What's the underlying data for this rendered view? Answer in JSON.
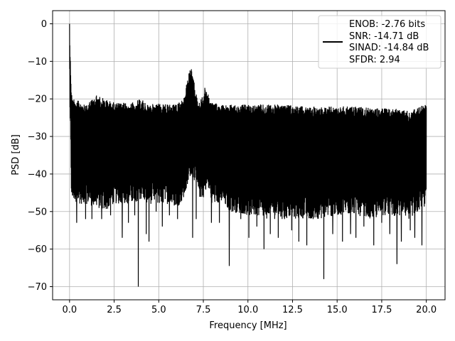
{
  "chart_data": {
    "type": "line",
    "xlabel": "Frequency [MHz]",
    "ylabel": "PSD [dB]",
    "xlim": [
      -0.95,
      21.05
    ],
    "ylim": [
      -73.5,
      3.5
    ],
    "xticks": [
      0.0,
      2.5,
      5.0,
      7.5,
      10.0,
      12.5,
      15.0,
      17.5,
      20.0
    ],
    "xtick_labels": [
      "0.0",
      "2.5",
      "5.0",
      "7.5",
      "10.0",
      "12.5",
      "15.0",
      "17.5",
      "20.0"
    ],
    "yticks": [
      0,
      -10,
      -20,
      -30,
      -40,
      -50,
      -60,
      -70
    ],
    "ytick_labels": [
      "0",
      "−10",
      "−20",
      "−30",
      "−40",
      "−50",
      "−60",
      "−70"
    ],
    "grid": true,
    "legend_position": "top-right",
    "line_color": "#000000",
    "legend": {
      "lines": [
        "ENOB: -2.76 bits",
        "SNR: -14.71 dB",
        "SINAD: -14.84 dB",
        "SFDR: 2.94"
      ]
    },
    "series": [
      {
        "x": [
          0.0,
          0.02,
          0.05,
          0.1,
          0.15,
          0.2,
          0.3,
          0.5,
          1.0,
          1.5,
          2.0,
          2.5,
          3.0,
          3.5,
          4.0,
          4.5,
          5.0,
          5.5,
          6.0,
          6.4,
          6.6,
          6.8,
          7.0,
          7.2,
          7.5,
          7.6,
          7.8,
          8.0,
          8.5,
          9.0,
          10.0,
          11.0,
          12.0,
          13.0,
          14.0,
          15.0,
          16.0,
          17.0,
          18.0,
          19.0,
          19.9,
          20.0
        ],
        "upper": [
          0.0,
          -5.0,
          -10.0,
          -17.0,
          -20.0,
          -19.5,
          -20.0,
          -20.5,
          -21.0,
          -19.0,
          -20.0,
          -21.0,
          -21.0,
          -21.0,
          -20.0,
          -21.5,
          -21.0,
          -21.5,
          -21.5,
          -20.0,
          -15.0,
          -11.0,
          -16.0,
          -21.0,
          -19.0,
          -16.5,
          -19.0,
          -21.0,
          -21.5,
          -21.5,
          -21.5,
          -21.5,
          -21.5,
          -22.0,
          -22.0,
          -22.0,
          -22.0,
          -22.5,
          -22.5,
          -23.0,
          -21.5,
          -21.0
        ],
        "lower": [
          -5.0,
          -28.0,
          -30.0,
          -45.0,
          -49.0,
          -47.0,
          -48.0,
          -48.0,
          -48.0,
          -49.0,
          -50.0,
          -48.0,
          -48.0,
          -48.0,
          -47.0,
          -48.0,
          -48.0,
          -48.0,
          -49.0,
          -47.0,
          -44.0,
          -40.0,
          -42.0,
          -46.0,
          -47.0,
          -44.0,
          -45.0,
          -48.0,
          -48.0,
          -50.0,
          -51.0,
          -52.0,
          -52.0,
          -52.0,
          -52.0,
          -51.0,
          -51.0,
          -52.0,
          -51.0,
          -52.0,
          -49.0,
          -46.0
        ],
        "dips": [
          [
            0.4,
            -53.0
          ],
          [
            0.9,
            -52.0
          ],
          [
            1.25,
            -52.0
          ],
          [
            1.8,
            -52.0
          ],
          [
            2.3,
            -51.0
          ],
          [
            2.95,
            -57.0
          ],
          [
            3.3,
            -53.0
          ],
          [
            3.65,
            -51.0
          ],
          [
            3.85,
            -70.0
          ],
          [
            4.3,
            -56.0
          ],
          [
            4.45,
            -58.0
          ],
          [
            4.85,
            -50.0
          ],
          [
            5.2,
            -54.0
          ],
          [
            5.6,
            -51.0
          ],
          [
            6.05,
            -52.0
          ],
          [
            6.9,
            -57.0
          ],
          [
            7.1,
            -52.0
          ],
          [
            7.95,
            -53.0
          ],
          [
            8.4,
            -53.0
          ],
          [
            8.95,
            -64.5
          ],
          [
            9.6,
            -52.0
          ],
          [
            10.05,
            -57.0
          ],
          [
            10.5,
            -54.0
          ],
          [
            10.9,
            -60.0
          ],
          [
            11.25,
            -56.0
          ],
          [
            11.7,
            -57.0
          ],
          [
            12.05,
            -52.0
          ],
          [
            12.45,
            -55.0
          ],
          [
            12.85,
            -58.0
          ],
          [
            13.3,
            -59.0
          ],
          [
            13.65,
            -52.0
          ],
          [
            14.25,
            -68.0
          ],
          [
            14.75,
            -56.0
          ],
          [
            15.3,
            -58.0
          ],
          [
            15.75,
            -56.0
          ],
          [
            16.05,
            -57.0
          ],
          [
            16.5,
            -54.0
          ],
          [
            17.05,
            -59.0
          ],
          [
            17.5,
            -53.0
          ],
          [
            17.95,
            -56.0
          ],
          [
            18.35,
            -64.0
          ],
          [
            18.6,
            -58.0
          ],
          [
            19.1,
            -55.0
          ],
          [
            19.35,
            -57.0
          ],
          [
            19.75,
            -59.0
          ]
        ]
      }
    ]
  }
}
